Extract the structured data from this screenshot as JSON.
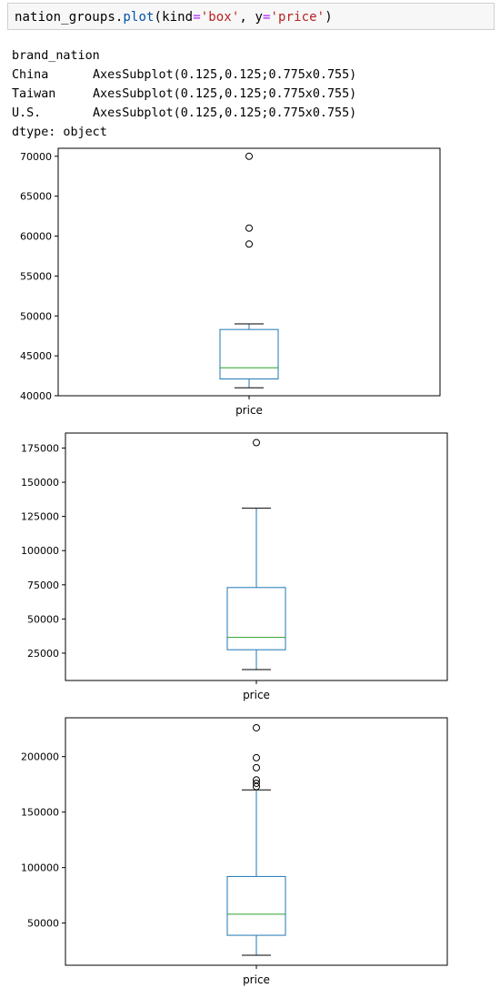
{
  "cell": {
    "code": {
      "object": "nation_groups",
      "method": "plot",
      "param1_name": "kind",
      "param1_value": "'box'",
      "param2_name": "y",
      "param2_value": "'price'"
    }
  },
  "output": {
    "header": "brand_nation",
    "rows": [
      {
        "key": "China",
        "value": "AxesSubplot(0.125,0.125;0.775x0.755)"
      },
      {
        "key": "Taiwan",
        "value": "AxesSubplot(0.125,0.125;0.775x0.755)"
      },
      {
        "key": "U.S.",
        "value": "AxesSubplot(0.125,0.125;0.775x0.755)"
      }
    ],
    "dtype": "dtype: object"
  },
  "colors": {
    "box": "#1f77b4",
    "median": "#2ca02c",
    "axes": "#000000"
  },
  "chart_data": [
    {
      "type": "box",
      "group": "China",
      "categories": [
        "price"
      ],
      "xlabel": "price",
      "ylim": [
        40000,
        71000
      ],
      "yticks": [
        40000,
        45000,
        50000,
        55000,
        60000,
        65000,
        70000
      ],
      "whisker_low": 41000,
      "q1": 42100,
      "median": 43500,
      "q3": 48300,
      "whisker_high": 49000,
      "outliers": [
        59000,
        61000,
        70000
      ]
    },
    {
      "type": "box",
      "group": "Taiwan",
      "categories": [
        "price"
      ],
      "xlabel": "price",
      "ylim": [
        5000,
        186000
      ],
      "yticks": [
        25000,
        50000,
        75000,
        100000,
        125000,
        150000,
        175000
      ],
      "whisker_low": 13000,
      "q1": 27500,
      "median": 36500,
      "q3": 73000,
      "whisker_high": 131000,
      "outliers": [
        179000
      ]
    },
    {
      "type": "box",
      "group": "U.S.",
      "categories": [
        "price"
      ],
      "xlabel": "price",
      "ylim": [
        12000,
        235000
      ],
      "yticks": [
        50000,
        100000,
        150000,
        200000
      ],
      "whisker_low": 21000,
      "q1": 39000,
      "median": 58000,
      "q3": 92000,
      "whisker_high": 170000,
      "outliers": [
        173000,
        176000,
        179000,
        190000,
        199000,
        226000
      ]
    }
  ]
}
